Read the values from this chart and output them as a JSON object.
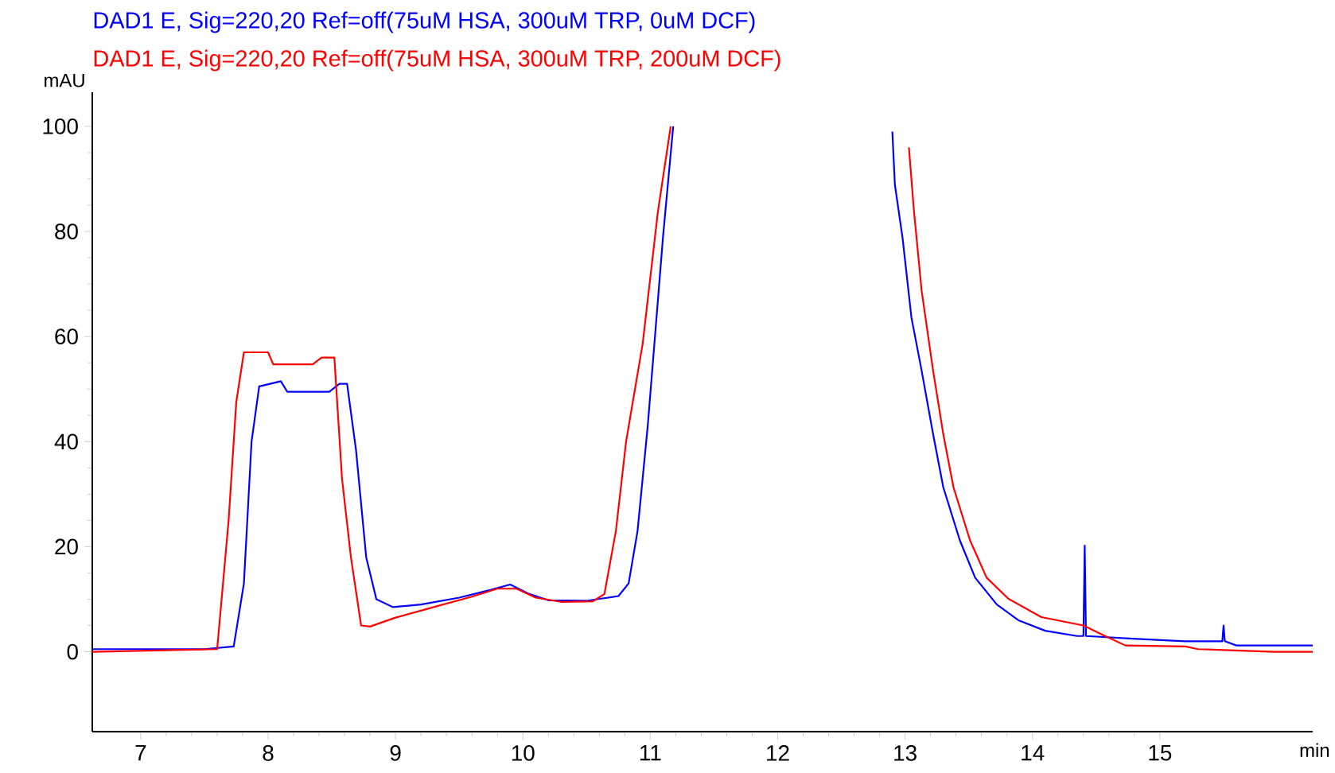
{
  "chart_data": {
    "type": "line",
    "xlabel": "min",
    "ylabel": "mAU",
    "xlim": [
      6.62,
      16.2
    ],
    "ylim": [
      -15.2,
      106.5
    ],
    "xticks": [
      7,
      8,
      9,
      10,
      11,
      12,
      13,
      14,
      15
    ],
    "yticks": [
      0,
      20,
      40,
      60,
      80,
      100
    ],
    "grid": false,
    "legend": "top left",
    "marker": "none",
    "line_style": "solid",
    "series": [
      {
        "name": "DAD1 E, Sig=220,20 Ref=off(75uM HSA, 300uM TRP, 0uM DCF)",
        "color": "#0000ff",
        "x": [
          6.62,
          7.5,
          7.73,
          7.81,
          7.87,
          7.93,
          8.1,
          8.15,
          8.48,
          8.56,
          8.62,
          8.69,
          8.77,
          8.85,
          8.98,
          9.2,
          9.5,
          9.75,
          9.9,
          10.05,
          10.2,
          10.5,
          10.75,
          10.83,
          10.9,
          10.98,
          11.1,
          11.18,
          11.2,
          12.88,
          12.9,
          12.92,
          12.98,
          13.05,
          13.13,
          13.22,
          13.3,
          13.43,
          13.55,
          13.72,
          13.89,
          14.1,
          14.35,
          14.4,
          14.41,
          14.42,
          14.79,
          15.2,
          15.49,
          15.5,
          15.51,
          15.6,
          16.2
        ],
        "values": [
          0.5,
          0.5,
          1,
          13,
          40,
          50.5,
          51.5,
          49.5,
          49.5,
          51,
          51,
          38.4,
          18,
          10,
          8.5,
          9,
          10.3,
          11.8,
          12.8,
          11,
          9.8,
          9.7,
          10.6,
          13,
          23,
          43,
          79,
          100,
          null,
          null,
          99,
          88.9,
          78.8,
          63.6,
          53.5,
          41.4,
          31.3,
          21.2,
          14.1,
          9,
          6,
          4,
          3,
          3,
          20.2,
          3,
          2.5,
          2,
          2,
          5,
          2,
          1.2,
          1.2
        ]
      },
      {
        "name": "DAD1 E, Sig=220,20 Ref=off(75uM HSA, 300uM TRP, 200uM DCF)",
        "color": "#ff0000",
        "x": [
          6.62,
          7.6,
          7.69,
          7.75,
          7.81,
          8.0,
          8.04,
          8.35,
          8.42,
          8.52,
          8.58,
          8.65,
          8.73,
          8.8,
          9.0,
          9.3,
          9.6,
          9.8,
          9.95,
          10.1,
          10.3,
          10.55,
          10.64,
          10.73,
          10.81,
          10.94,
          11.06,
          11.16,
          11.19,
          13.01,
          13.03,
          13.07,
          13.13,
          13.22,
          13.3,
          13.38,
          13.51,
          13.64,
          13.81,
          14.07,
          14.4,
          14.57,
          14.73,
          15.2,
          15.3,
          15.9,
          16.2
        ],
        "values": [
          0,
          0.5,
          25,
          47.5,
          57,
          57,
          54.7,
          54.7,
          56,
          56,
          33,
          18,
          5,
          4.8,
          6.5,
          8.5,
          10.5,
          12,
          12,
          10.3,
          9.5,
          9.6,
          11,
          23,
          40,
          58.6,
          83.8,
          100,
          null,
          null,
          96,
          83.8,
          68.7,
          53.5,
          41.4,
          31.3,
          21.2,
          14.1,
          10.1,
          6.6,
          5,
          3,
          1.2,
          1,
          0.5,
          0,
          0
        ]
      }
    ]
  }
}
